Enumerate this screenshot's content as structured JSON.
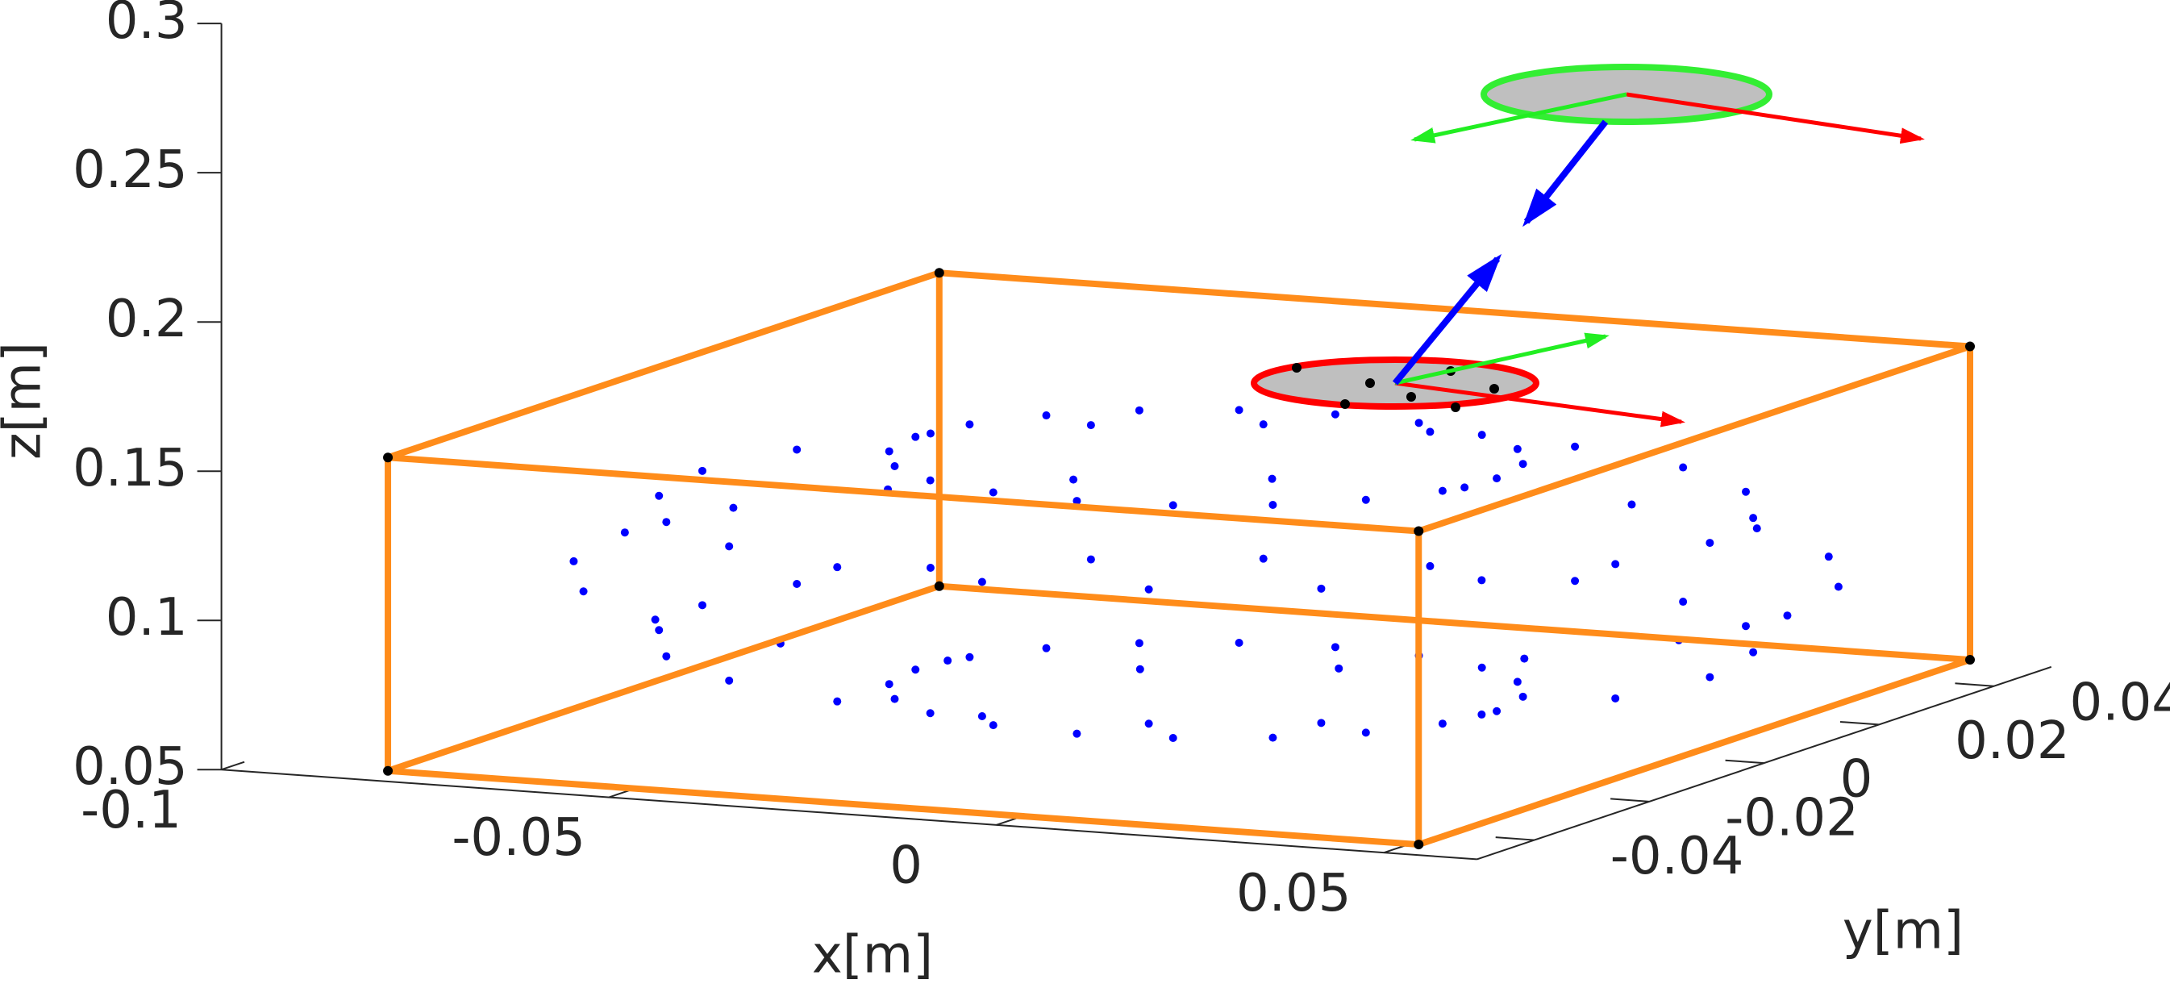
{
  "chart_data": {
    "type": "scatter3d",
    "xlabel": "x[m]",
    "ylabel": "y[m]",
    "zlabel": "z[m]",
    "xlim": [
      -0.1,
      0.062
    ],
    "ylim": [
      -0.05,
      0.05
    ],
    "zlim": [
      0.05,
      0.3
    ],
    "xticks": [
      -0.1,
      -0.05,
      0,
      0.05
    ],
    "yticks": [
      -0.04,
      -0.02,
      0,
      0.02,
      0.04
    ],
    "zticks": [
      0.05,
      0.1,
      0.15,
      0.2,
      0.25,
      0.3
    ],
    "color": "#0000ff",
    "x": [
      0.0275,
      0.0257,
      0.0204,
      0.0121,
      0.0016,
      -0.01,
      -0.0216,
      -0.0321,
      -0.0404,
      -0.0457,
      -0.0475,
      -0.0457,
      -0.0404,
      -0.0321,
      -0.0216,
      -0.01,
      0.0016,
      0.0121,
      0.0204,
      0.0257,
      0.055,
      0.0517,
      0.0426,
      0.0282,
      0.0101,
      -0.01,
      -0.0301,
      -0.0482,
      -0.0626,
      -0.0717,
      -0.075,
      -0.0717,
      -0.0626,
      -0.0482,
      -0.0301,
      -0.01,
      0.0101,
      0.0282,
      0.0426,
      0.0517,
      0.065,
      0.0613,
      0.0507,
      0.0341,
      0.0132,
      -0.01,
      -0.0332,
      -0.0541,
      -0.0707,
      -0.0813,
      -0.085,
      -0.0813,
      -0.0707,
      -0.0541,
      -0.0332,
      -0.01,
      0.0132,
      0.0341,
      0.0507,
      0.0613,
      0.055,
      0.0517,
      0.0426,
      0.0282,
      0.0101,
      -0.01,
      -0.0301,
      -0.0482,
      -0.0626,
      -0.0717,
      -0.075,
      -0.0717,
      -0.0626,
      -0.0482,
      -0.0301,
      -0.01,
      0.0101,
      0.0282,
      0.0426,
      0.0517,
      0.0275,
      0.0257,
      0.0204,
      0.0121,
      0.0016,
      -0.01,
      -0.0216,
      -0.0321,
      -0.0404,
      -0.0457,
      -0.0475,
      -0.0457,
      -0.0404,
      -0.0321,
      -0.0216,
      -0.01,
      0.0016,
      0.0121,
      0.0204,
      0.0257
    ],
    "y": [
      0,
      0.007,
      0.0132,
      0.0182,
      0.0214,
      0.0225,
      0.0214,
      0.0182,
      0.0132,
      0.007,
      0,
      -0.007,
      -0.0132,
      -0.0182,
      -0.0214,
      -0.0225,
      -0.0214,
      -0.0182,
      -0.0132,
      -0.007,
      0,
      0.012,
      0.023,
      0.0315,
      0.0371,
      0.039,
      0.0371,
      0.0315,
      0.023,
      0.012,
      0,
      -0.012,
      -0.023,
      -0.0315,
      -0.0371,
      -0.039,
      -0.0371,
      -0.0315,
      -0.023,
      -0.012,
      0,
      0.0139,
      0.0265,
      0.0364,
      0.0428,
      0.045,
      0.0428,
      0.0364,
      0.0265,
      0.0139,
      0,
      -0.0139,
      -0.0265,
      -0.0364,
      -0.0428,
      -0.045,
      -0.0428,
      -0.0364,
      -0.0265,
      -0.0139,
      0,
      0.012,
      0.023,
      0.0315,
      0.0371,
      0.039,
      0.0371,
      0.0315,
      0.023,
      0.012,
      0,
      -0.012,
      -0.023,
      -0.0315,
      -0.0371,
      -0.039,
      -0.0371,
      -0.0315,
      -0.023,
      -0.012,
      0,
      0.007,
      0.0132,
      0.0182,
      0.0214,
      0.0225,
      0.0214,
      0.0182,
      0.0132,
      0.007,
      0,
      -0.007,
      -0.0132,
      -0.0182,
      -0.0214,
      -0.0225,
      -0.0214,
      -0.0182,
      -0.0132,
      -0.007
    ],
    "z": [
      0.061,
      0.061,
      0.061,
      0.061,
      0.061,
      0.061,
      0.061,
      0.061,
      0.061,
      0.061,
      0.061,
      0.061,
      0.061,
      0.061,
      0.061,
      0.061,
      0.061,
      0.061,
      0.061,
      0.061,
      0.0775,
      0.0775,
      0.0775,
      0.0775,
      0.0775,
      0.0775,
      0.0775,
      0.0775,
      0.0775,
      0.0775,
      0.0775,
      0.0775,
      0.0775,
      0.0775,
      0.0775,
      0.0775,
      0.0775,
      0.0775,
      0.0775,
      0.0775,
      0.1,
      0.1,
      0.1,
      0.1,
      0.1,
      0.1,
      0.1,
      0.1,
      0.1,
      0.1,
      0.1,
      0.1,
      0.1,
      0.1,
      0.1,
      0.1,
      0.1,
      0.1,
      0.1,
      0.1,
      0.1225,
      0.1225,
      0.1225,
      0.1225,
      0.1225,
      0.1225,
      0.1225,
      0.1225,
      0.1225,
      0.1225,
      0.1225,
      0.1225,
      0.1225,
      0.1225,
      0.1225,
      0.1225,
      0.1225,
      0.1225,
      0.1225,
      0.1225,
      0.139,
      0.139,
      0.139,
      0.139,
      0.139,
      0.139,
      0.139,
      0.139,
      0.139,
      0.139,
      0.139,
      0.139,
      0.139,
      0.139,
      0.139,
      0.139,
      0.139,
      0.139,
      0.139,
      0.139
    ],
    "box": {
      "color": "#ff8c1a",
      "x": [
        -0.08,
        0.053
      ],
      "y": [
        -0.048,
        0.048
      ],
      "z": [
        0.052,
        0.157
      ]
    }
  }
}
